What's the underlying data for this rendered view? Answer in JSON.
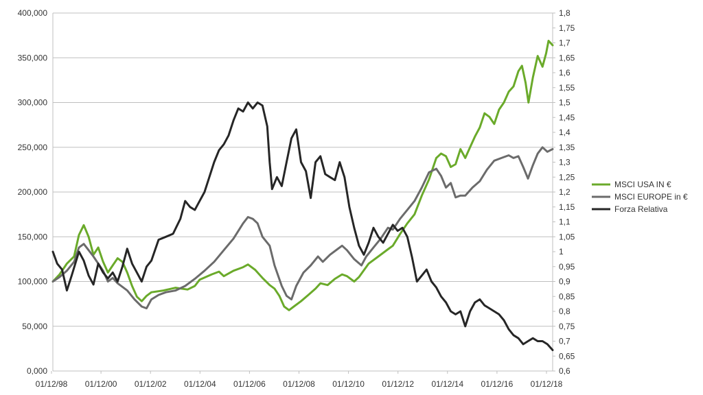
{
  "chart_data": {
    "type": "line",
    "title": "",
    "xlabel": "",
    "ylabel": "",
    "x_tick_labels": [
      "01/12/98",
      "01/12/00",
      "01/12/02",
      "01/12/04",
      "01/12/06",
      "01/12/08",
      "01/12/10",
      "01/12/12",
      "01/12/14",
      "01/12/16",
      "01/12/18"
    ],
    "x_range": [
      1998.92,
      2019.62
    ],
    "y_left": {
      "range": [
        0,
        400000
      ],
      "tick_values": [
        0,
        50000,
        100000,
        150000,
        200000,
        250000,
        300000,
        350000,
        400000
      ],
      "tick_labels": [
        "0,000",
        "50,000",
        "100,000",
        "150,000",
        "200,000",
        "250,000",
        "300,000",
        "350,000",
        "400,000"
      ]
    },
    "y_right": {
      "range": [
        0.6,
        1.8
      ],
      "tick_values": [
        0.6,
        0.65,
        0.7,
        0.75,
        0.8,
        0.85,
        0.9,
        0.95,
        1.0,
        1.05,
        1.1,
        1.15,
        1.2,
        1.25,
        1.3,
        1.35,
        1.4,
        1.45,
        1.5,
        1.55,
        1.6,
        1.65,
        1.7,
        1.75,
        1.8
      ],
      "tick_labels": [
        "0,6",
        "0,65",
        "0,7",
        "0,75",
        "0,8",
        "0,85",
        "0,9",
        "0,95",
        "1",
        "1,05",
        "1,1",
        "1,15",
        "1,2",
        "1,25",
        "1,3",
        "1,35",
        "1,4",
        "1,45",
        "1,5",
        "1,55",
        "1,6",
        "1,65",
        "1,7",
        "1,75",
        "1,8"
      ]
    },
    "grid": true,
    "legend_position": "right",
    "series": [
      {
        "name": "MSCI USA IN €",
        "axis": "left",
        "color": "#6aaa2a",
        "points": [
          [
            1998.92,
            100000
          ],
          [
            1999.2,
            108000
          ],
          [
            1999.5,
            120000
          ],
          [
            1999.8,
            128000
          ],
          [
            2000.0,
            152000
          ],
          [
            2000.2,
            163000
          ],
          [
            2000.4,
            150000
          ],
          [
            2000.6,
            130000
          ],
          [
            2000.8,
            138000
          ],
          [
            2001.0,
            122000
          ],
          [
            2001.2,
            110000
          ],
          [
            2001.4,
            118000
          ],
          [
            2001.6,
            126000
          ],
          [
            2001.8,
            122000
          ],
          [
            2002.0,
            110000
          ],
          [
            2002.2,
            95000
          ],
          [
            2002.4,
            83000
          ],
          [
            2002.6,
            78000
          ],
          [
            2002.8,
            84000
          ],
          [
            2003.0,
            88000
          ],
          [
            2003.5,
            90000
          ],
          [
            2004.0,
            93000
          ],
          [
            2004.5,
            91000
          ],
          [
            2004.8,
            95000
          ],
          [
            2005.0,
            102000
          ],
          [
            2005.5,
            108000
          ],
          [
            2005.8,
            111000
          ],
          [
            2006.0,
            106000
          ],
          [
            2006.4,
            112000
          ],
          [
            2006.8,
            116000
          ],
          [
            2007.0,
            119000
          ],
          [
            2007.3,
            113000
          ],
          [
            2007.6,
            104000
          ],
          [
            2007.9,
            96000
          ],
          [
            2008.1,
            92000
          ],
          [
            2008.3,
            84000
          ],
          [
            2008.5,
            72000
          ],
          [
            2008.7,
            68000
          ],
          [
            2008.9,
            72000
          ],
          [
            2009.2,
            78000
          ],
          [
            2009.5,
            85000
          ],
          [
            2009.8,
            92000
          ],
          [
            2010.0,
            98000
          ],
          [
            2010.3,
            96000
          ],
          [
            2010.6,
            103000
          ],
          [
            2010.9,
            108000
          ],
          [
            2011.1,
            106000
          ],
          [
            2011.4,
            100000
          ],
          [
            2011.6,
            105000
          ],
          [
            2012.0,
            120000
          ],
          [
            2012.4,
            128000
          ],
          [
            2012.8,
            136000
          ],
          [
            2013.0,
            140000
          ],
          [
            2013.3,
            153000
          ],
          [
            2013.6,
            165000
          ],
          [
            2013.9,
            175000
          ],
          [
            2014.2,
            196000
          ],
          [
            2014.5,
            214000
          ],
          [
            2014.8,
            238000
          ],
          [
            2015.0,
            243000
          ],
          [
            2015.2,
            240000
          ],
          [
            2015.4,
            228000
          ],
          [
            2015.6,
            231000
          ],
          [
            2015.8,
            248000
          ],
          [
            2016.0,
            238000
          ],
          [
            2016.2,
            250000
          ],
          [
            2016.4,
            262000
          ],
          [
            2016.6,
            272000
          ],
          [
            2016.8,
            288000
          ],
          [
            2017.0,
            284000
          ],
          [
            2017.2,
            276000
          ],
          [
            2017.4,
            292000
          ],
          [
            2017.6,
            300000
          ],
          [
            2017.8,
            312000
          ],
          [
            2018.0,
            318000
          ],
          [
            2018.2,
            335000
          ],
          [
            2018.35,
            341000
          ],
          [
            2018.5,
            322000
          ],
          [
            2018.62,
            300000
          ],
          [
            2018.8,
            328000
          ],
          [
            2019.0,
            352000
          ],
          [
            2019.2,
            340000
          ],
          [
            2019.35,
            355000
          ],
          [
            2019.45,
            369000
          ],
          [
            2019.62,
            364000
          ]
        ]
      },
      {
        "name": "MSCI EUROPE in €",
        "axis": "left",
        "color": "#6b6b6b",
        "points": [
          [
            1998.92,
            100000
          ],
          [
            1999.2,
            105000
          ],
          [
            1999.5,
            112000
          ],
          [
            1999.8,
            122000
          ],
          [
            2000.0,
            138000
          ],
          [
            2000.2,
            142000
          ],
          [
            2000.4,
            135000
          ],
          [
            2000.6,
            128000
          ],
          [
            2000.8,
            120000
          ],
          [
            2001.0,
            112000
          ],
          [
            2001.2,
            100000
          ],
          [
            2001.4,
            104000
          ],
          [
            2001.6,
            98000
          ],
          [
            2001.8,
            94000
          ],
          [
            2002.0,
            90000
          ],
          [
            2002.3,
            80000
          ],
          [
            2002.6,
            72000
          ],
          [
            2002.8,
            70000
          ],
          [
            2003.0,
            80000
          ],
          [
            2003.3,
            85000
          ],
          [
            2003.6,
            88000
          ],
          [
            2004.0,
            90000
          ],
          [
            2004.4,
            95000
          ],
          [
            2004.8,
            103000
          ],
          [
            2005.2,
            112000
          ],
          [
            2005.6,
            122000
          ],
          [
            2006.0,
            135000
          ],
          [
            2006.4,
            148000
          ],
          [
            2006.8,
            165000
          ],
          [
            2007.0,
            172000
          ],
          [
            2007.2,
            170000
          ],
          [
            2007.4,
            165000
          ],
          [
            2007.6,
            150000
          ],
          [
            2007.9,
            140000
          ],
          [
            2008.1,
            118000
          ],
          [
            2008.4,
            95000
          ],
          [
            2008.6,
            84000
          ],
          [
            2008.8,
            80000
          ],
          [
            2009.0,
            95000
          ],
          [
            2009.3,
            110000
          ],
          [
            2009.6,
            118000
          ],
          [
            2009.9,
            128000
          ],
          [
            2010.1,
            122000
          ],
          [
            2010.4,
            130000
          ],
          [
            2010.7,
            136000
          ],
          [
            2010.9,
            140000
          ],
          [
            2011.1,
            135000
          ],
          [
            2011.4,
            125000
          ],
          [
            2011.7,
            118000
          ],
          [
            2011.9,
            128000
          ],
          [
            2012.2,
            138000
          ],
          [
            2012.5,
            148000
          ],
          [
            2012.8,
            160000
          ],
          [
            2013.0,
            158000
          ],
          [
            2013.3,
            170000
          ],
          [
            2013.6,
            180000
          ],
          [
            2013.9,
            190000
          ],
          [
            2014.2,
            205000
          ],
          [
            2014.5,
            222000
          ],
          [
            2014.8,
            226000
          ],
          [
            2015.0,
            218000
          ],
          [
            2015.2,
            205000
          ],
          [
            2015.4,
            210000
          ],
          [
            2015.6,
            194000
          ],
          [
            2015.8,
            196000
          ],
          [
            2016.0,
            196000
          ],
          [
            2016.3,
            205000
          ],
          [
            2016.6,
            212000
          ],
          [
            2016.9,
            225000
          ],
          [
            2017.2,
            235000
          ],
          [
            2017.5,
            238000
          ],
          [
            2017.8,
            241000
          ],
          [
            2018.0,
            238000
          ],
          [
            2018.2,
            240000
          ],
          [
            2018.4,
            228000
          ],
          [
            2018.6,
            215000
          ],
          [
            2018.8,
            230000
          ],
          [
            2019.0,
            243000
          ],
          [
            2019.2,
            250000
          ],
          [
            2019.4,
            245000
          ],
          [
            2019.62,
            248000
          ]
        ]
      },
      {
        "name": "Forza Relativa",
        "axis": "right",
        "color": "#262626",
        "points": [
          [
            1998.92,
            1.0
          ],
          [
            1999.1,
            0.96
          ],
          [
            1999.3,
            0.94
          ],
          [
            1999.5,
            0.87
          ],
          [
            1999.7,
            0.92
          ],
          [
            2000.0,
            1.0
          ],
          [
            2000.2,
            0.97
          ],
          [
            2000.4,
            0.92
          ],
          [
            2000.6,
            0.89
          ],
          [
            2000.8,
            0.96
          ],
          [
            2001.0,
            0.93
          ],
          [
            2001.2,
            0.91
          ],
          [
            2001.4,
            0.93
          ],
          [
            2001.6,
            0.9
          ],
          [
            2001.8,
            0.95
          ],
          [
            2002.0,
            1.01
          ],
          [
            2002.2,
            0.96
          ],
          [
            2002.4,
            0.93
          ],
          [
            2002.6,
            0.9
          ],
          [
            2002.8,
            0.95
          ],
          [
            2003.0,
            0.97
          ],
          [
            2003.3,
            1.04
          ],
          [
            2003.6,
            1.05
          ],
          [
            2003.9,
            1.06
          ],
          [
            2004.2,
            1.11
          ],
          [
            2004.4,
            1.17
          ],
          [
            2004.6,
            1.15
          ],
          [
            2004.8,
            1.14
          ],
          [
            2005.0,
            1.17
          ],
          [
            2005.2,
            1.2
          ],
          [
            2005.4,
            1.25
          ],
          [
            2005.6,
            1.3
          ],
          [
            2005.8,
            1.34
          ],
          [
            2006.0,
            1.36
          ],
          [
            2006.2,
            1.39
          ],
          [
            2006.4,
            1.44
          ],
          [
            2006.6,
            1.48
          ],
          [
            2006.8,
            1.47
          ],
          [
            2007.0,
            1.5
          ],
          [
            2007.2,
            1.48
          ],
          [
            2007.4,
            1.5
          ],
          [
            2007.6,
            1.49
          ],
          [
            2007.8,
            1.42
          ],
          [
            2007.9,
            1.3
          ],
          [
            2008.0,
            1.21
          ],
          [
            2008.2,
            1.25
          ],
          [
            2008.4,
            1.22
          ],
          [
            2008.6,
            1.3
          ],
          [
            2008.8,
            1.38
          ],
          [
            2009.0,
            1.41
          ],
          [
            2009.2,
            1.3
          ],
          [
            2009.4,
            1.27
          ],
          [
            2009.6,
            1.18
          ],
          [
            2009.8,
            1.3
          ],
          [
            2010.0,
            1.32
          ],
          [
            2010.2,
            1.26
          ],
          [
            2010.4,
            1.25
          ],
          [
            2010.6,
            1.24
          ],
          [
            2010.8,
            1.3
          ],
          [
            2011.0,
            1.25
          ],
          [
            2011.2,
            1.15
          ],
          [
            2011.4,
            1.08
          ],
          [
            2011.6,
            1.02
          ],
          [
            2011.8,
            0.99
          ],
          [
            2012.0,
            1.03
          ],
          [
            2012.2,
            1.08
          ],
          [
            2012.4,
            1.05
          ],
          [
            2012.6,
            1.03
          ],
          [
            2012.8,
            1.06
          ],
          [
            2013.0,
            1.09
          ],
          [
            2013.2,
            1.07
          ],
          [
            2013.4,
            1.08
          ],
          [
            2013.6,
            1.05
          ],
          [
            2013.8,
            0.98
          ],
          [
            2014.0,
            0.9
          ],
          [
            2014.2,
            0.92
          ],
          [
            2014.4,
            0.94
          ],
          [
            2014.6,
            0.9
          ],
          [
            2014.8,
            0.88
          ],
          [
            2015.0,
            0.85
          ],
          [
            2015.2,
            0.83
          ],
          [
            2015.4,
            0.8
          ],
          [
            2015.6,
            0.79
          ],
          [
            2015.8,
            0.8
          ],
          [
            2016.0,
            0.75
          ],
          [
            2016.2,
            0.8
          ],
          [
            2016.4,
            0.83
          ],
          [
            2016.6,
            0.84
          ],
          [
            2016.8,
            0.82
          ],
          [
            2017.0,
            0.81
          ],
          [
            2017.2,
            0.8
          ],
          [
            2017.4,
            0.79
          ],
          [
            2017.6,
            0.77
          ],
          [
            2017.8,
            0.74
          ],
          [
            2018.0,
            0.72
          ],
          [
            2018.2,
            0.71
          ],
          [
            2018.4,
            0.69
          ],
          [
            2018.6,
            0.7
          ],
          [
            2018.8,
            0.71
          ],
          [
            2019.0,
            0.7
          ],
          [
            2019.2,
            0.7
          ],
          [
            2019.4,
            0.69
          ],
          [
            2019.62,
            0.67
          ]
        ]
      }
    ]
  }
}
